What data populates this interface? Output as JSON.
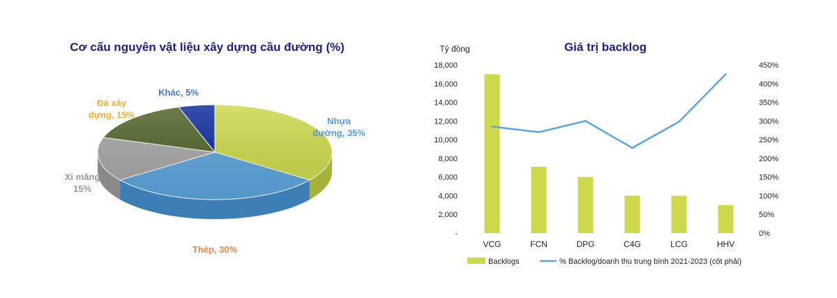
{
  "chart_data": [
    {
      "type": "pie",
      "title": "Cơ cấu nguyên vật liệu xây dựng cầu đường (%)",
      "slices": [
        {
          "label_lines": [
            "Nhựa",
            "đường, 35%"
          ],
          "value": 35,
          "color": "#cdd94a",
          "side": "#a7b23a",
          "label_color": "#5b9bd5"
        },
        {
          "label_lines": [
            "Thép, 30%"
          ],
          "value": 30,
          "color": "#5ba4dc",
          "side": "#3c7fb6",
          "label_color": "#e8884a"
        },
        {
          "label_lines": [
            "Xi măng",
            "15%"
          ],
          "value": 15,
          "color": "#a6a6a6",
          "side": "#8a8a8a",
          "label_color": "#9a9a9a"
        },
        {
          "label_lines": [
            "Đá xây",
            "dựng, 15%"
          ],
          "value": 15,
          "color": "#4f6228",
          "side": "#3c4b1e",
          "label_color": "#f2b134"
        },
        {
          "label_lines": [
            "Khác, 5%"
          ],
          "value": 5,
          "color": "#0c2a9c",
          "side": "#081d6e",
          "label_color": "#4a78c8"
        }
      ]
    },
    {
      "type": "bar",
      "title": "Giá trị backlog",
      "y_unit_label": "Tỷ đồng",
      "categories": [
        "VCG",
        "FCN",
        "DPG",
        "C4G",
        "LCG",
        "HHV"
      ],
      "series": [
        {
          "name": "Backlogs",
          "type": "bar",
          "axis": "left",
          "color": "#cdd94a",
          "values": [
            17000,
            7100,
            6000,
            4000,
            4000,
            3000
          ]
        },
        {
          "name": "% Backlog/doanh thu trung bình 2021-2023 (cột phải)",
          "type": "line",
          "axis": "right",
          "color": "#5ba4dc",
          "values": [
            285,
            270,
            300,
            228,
            298,
            425
          ]
        }
      ],
      "y_left": {
        "min": 0,
        "max": 18000,
        "ticks": [
          "-",
          "2,000",
          "4,000",
          "6,000",
          "8,000",
          "10,000",
          "12,000",
          "14,000",
          "16,000",
          "18,000"
        ]
      },
      "y_right": {
        "min": 0,
        "max": 450,
        "ticks": [
          "0%",
          "50%",
          "100%",
          "150%",
          "200%",
          "250%",
          "300%",
          "350%",
          "400%",
          "450%"
        ]
      },
      "legend_position": "bottom",
      "grid": false
    }
  ]
}
